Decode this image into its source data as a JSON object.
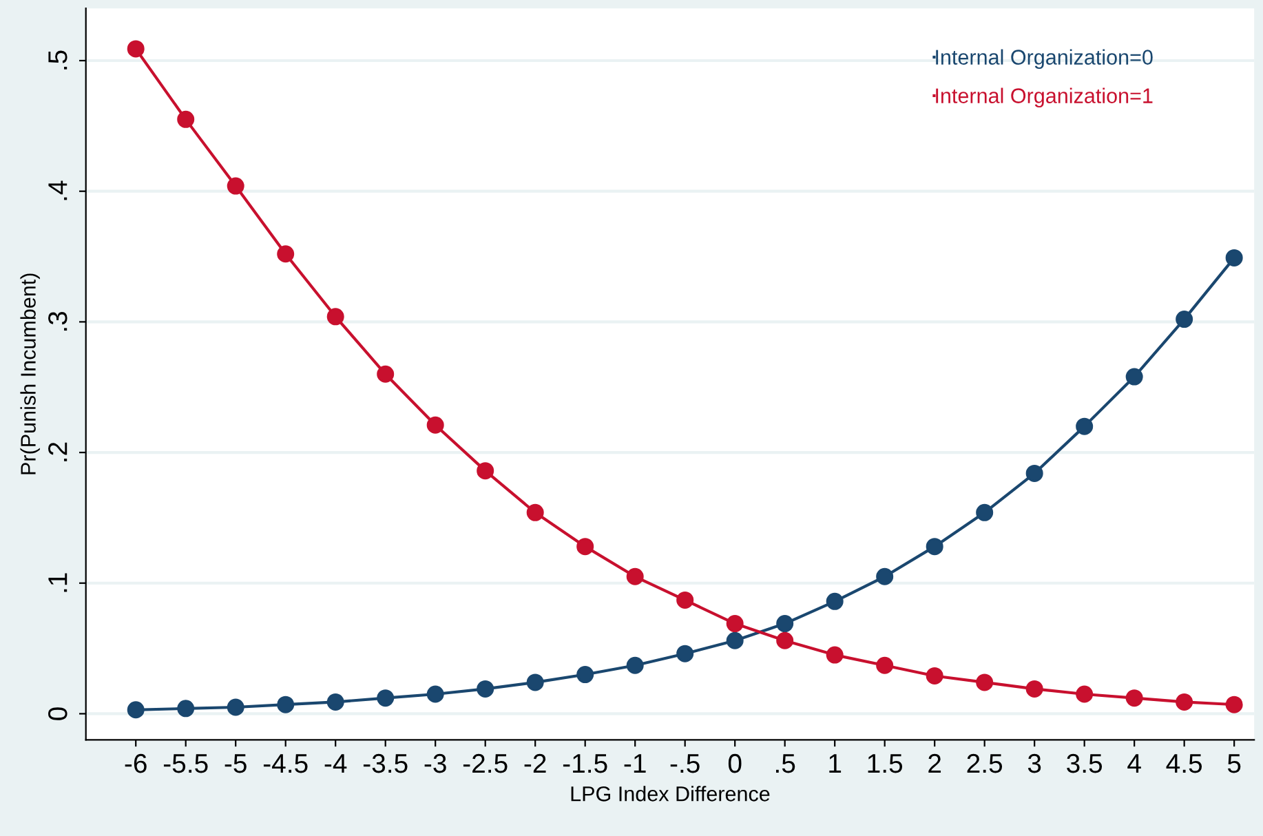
{
  "chart_data": {
    "type": "line",
    "xlabel": "LPG Index Difference",
    "ylabel": "Pr(Punish Incumbent)",
    "x": [
      -6,
      -5.5,
      -5,
      -4.5,
      -4,
      -3.5,
      -3,
      -2.5,
      -2,
      -1.5,
      -1,
      -0.5,
      0,
      0.5,
      1,
      1.5,
      2,
      2.5,
      3,
      3.5,
      4,
      4.5,
      5
    ],
    "series": [
      {
        "name": "Internal Organization=0",
        "color": "#1a476f",
        "values": [
          0.003,
          0.004,
          0.005,
          0.007,
          0.009,
          0.012,
          0.015,
          0.019,
          0.024,
          0.03,
          0.037,
          0.046,
          0.056,
          0.069,
          0.086,
          0.105,
          0.128,
          0.154,
          0.184,
          0.22,
          0.258,
          0.302,
          0.349
        ]
      },
      {
        "name": "Internal Organization=1",
        "color": "#c8102e",
        "values": [
          0.509,
          0.455,
          0.404,
          0.352,
          0.304,
          0.26,
          0.221,
          0.186,
          0.154,
          0.128,
          0.105,
          0.087,
          0.069,
          0.056,
          0.045,
          0.037,
          0.029,
          0.024,
          0.019,
          0.015,
          0.012,
          0.009,
          0.007
        ]
      }
    ],
    "xlim": [
      -6.5,
      5.2
    ],
    "ylim": [
      -0.02,
      0.54
    ],
    "xticks": [
      -6,
      -5.5,
      -5,
      -4.5,
      -4,
      -3.5,
      -3,
      -2.5,
      -2,
      -1.5,
      -1,
      {
        "value": -0.5,
        "label": "-.5"
      },
      0,
      {
        "value": 0.5,
        "label": ".5"
      },
      1,
      1.5,
      2,
      2.5,
      3,
      3.5,
      4,
      4.5,
      5
    ],
    "yticks": [
      0,
      {
        "value": 0.1,
        "label": ".1"
      },
      {
        "value": 0.2,
        "label": ".2"
      },
      {
        "value": 0.3,
        "label": ".3"
      },
      {
        "value": 0.4,
        "label": ".4"
      },
      {
        "value": 0.5,
        "label": ".5"
      }
    ],
    "grid": "y",
    "legend": "top right",
    "marker": "circle",
    "line_style": "solid"
  }
}
